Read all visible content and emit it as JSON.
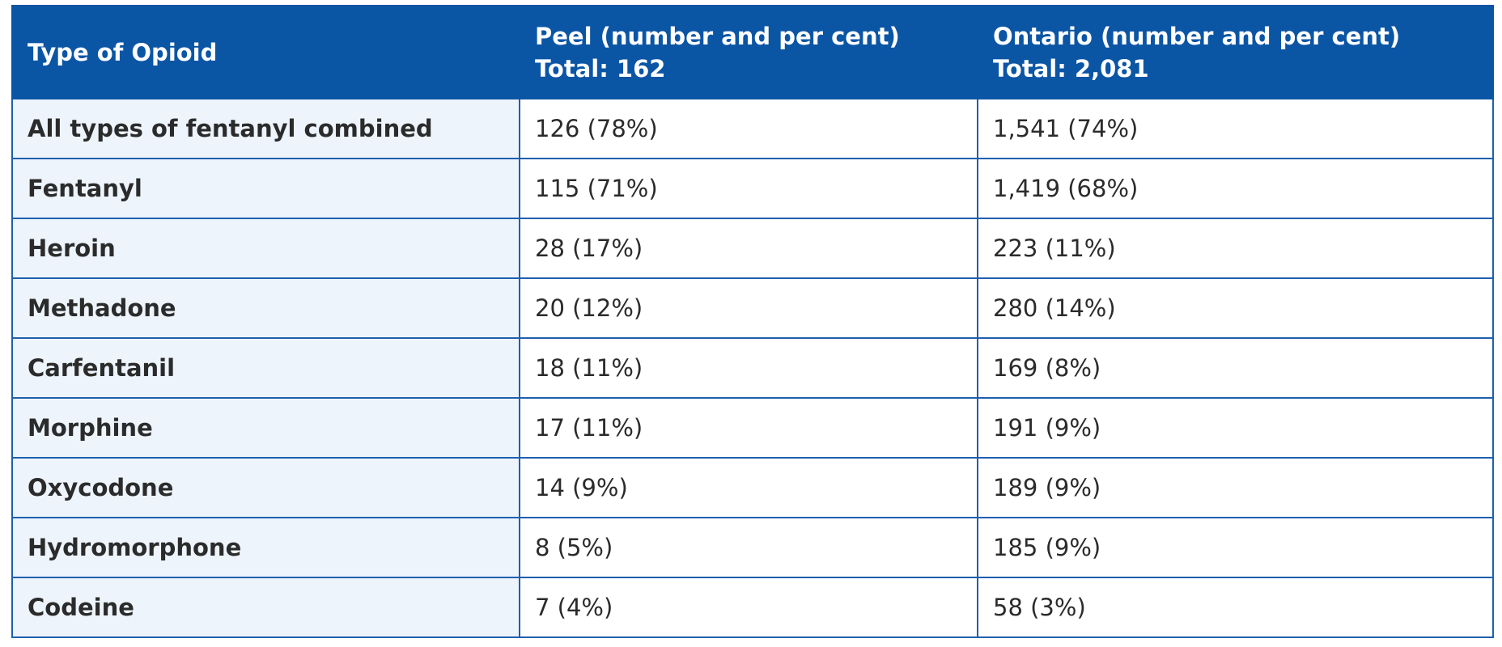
{
  "table": {
    "headers": [
      {
        "lines": [
          "Type of Opioid"
        ]
      },
      {
        "lines": [
          "Peel (number and per cent)",
          "Total: 162"
        ]
      },
      {
        "lines": [
          "Ontario (number and per cent)",
          "Total: 2,081"
        ]
      }
    ],
    "rows": [
      [
        "All types of fentanyl combined",
        "126 (78%)",
        "1,541 (74%)"
      ],
      [
        "Fentanyl",
        "115 (71%)",
        "1,419 (68%)"
      ],
      [
        "Heroin",
        "28 (17%)",
        "223 (11%)"
      ],
      [
        "Methadone",
        "20 (12%)",
        "280 (14%)"
      ],
      [
        "Carfentanil",
        "18 (11%)",
        "169 (8%)"
      ],
      [
        "Morphine",
        "17 (11%)",
        "191 (9%)"
      ],
      [
        "Oxycodone",
        "14 (9%)",
        "189 (9%)"
      ],
      [
        "Hydromorphone",
        "8 (5%)",
        "185 (9%)"
      ],
      [
        "Codeine",
        "7 (4%)",
        "58 (3%)"
      ]
    ]
  },
  "colors": {
    "header_bg": "#0b55a5",
    "border": "#1e5fae",
    "label_bg": "#edf4fc"
  }
}
